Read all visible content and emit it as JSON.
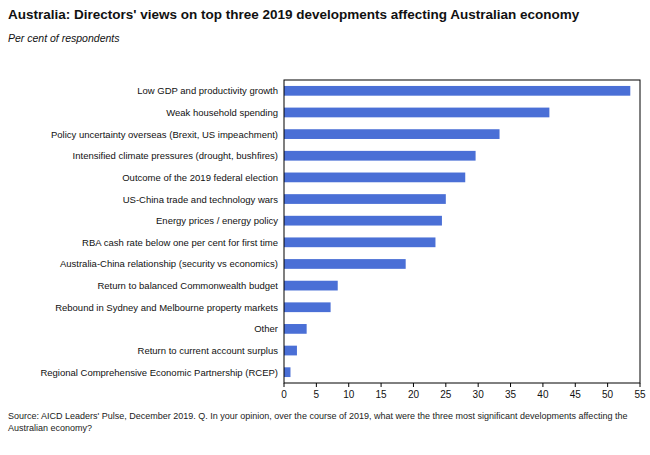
{
  "chart_data": {
    "type": "bar",
    "orientation": "horizontal",
    "title": "Australia: Directors' views on top three 2019 developments affecting Australian economy",
    "subtitle": "Per cent of respondents",
    "source": "Source: AICD Leaders' Pulse, December 2019. Q. In your opinion, over the course of 2019, what were the three most significant developments affecting the Australian economy?",
    "categories": [
      "Low GDP and productivity growth",
      "Weak household spending",
      "Policy uncertainty overseas (Brexit, US impeachment)",
      "Intensified climate pressures (drought, bushfires)",
      "Outcome of the 2019 federal election",
      "US-China trade and technology wars",
      "Energy prices / energy policy",
      "RBA cash rate below one per cent for first time",
      "Australia-China relationship (security vs economics)",
      "Return to balanced Commonwealth budget",
      "Rebound in Sydney and Melbourne property markets",
      "Other",
      "Return to current account surplus",
      "Regional Comprehensive Economic Partnership (RCEP)"
    ],
    "values": [
      53.5,
      41,
      33.3,
      29.6,
      28,
      25,
      24.4,
      23.4,
      18.8,
      8.3,
      7.2,
      3.5,
      2,
      1
    ],
    "color": "#4a6fd6",
    "xlim": [
      0,
      55
    ],
    "xticks": [
      0,
      5,
      10,
      15,
      20,
      25,
      30,
      35,
      40,
      45,
      50,
      55
    ],
    "grid": false
  }
}
